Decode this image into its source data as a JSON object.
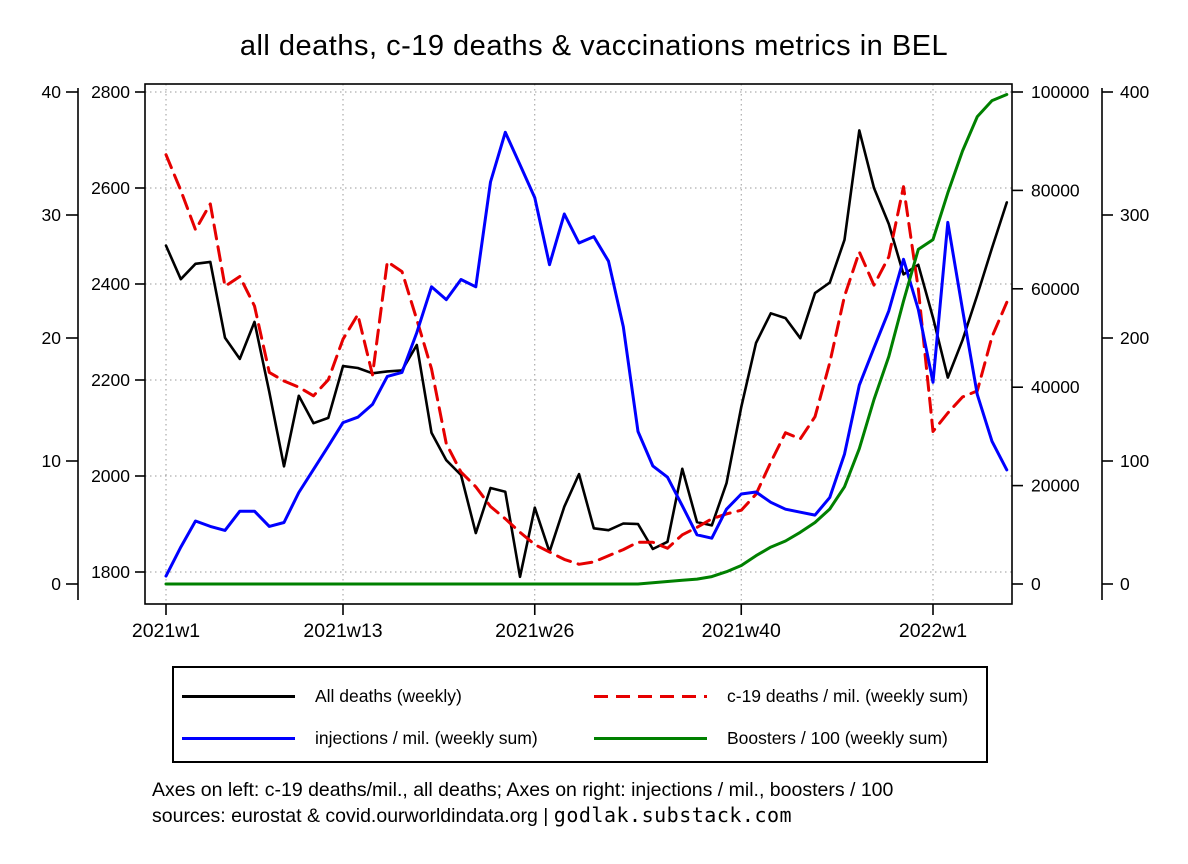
{
  "title": "all deaths, c-19 deaths & vaccinations metrics in BEL",
  "legend": {
    "items": [
      {
        "label": "All deaths (weekly)",
        "color": "#000000",
        "style": "solid",
        "row": 0,
        "col": 0
      },
      {
        "label": "c-19 deaths / mil. (weekly sum)",
        "color": "#e60000",
        "style": "dashed",
        "row": 0,
        "col": 1
      },
      {
        "label": "injections / mil. (weekly sum)",
        "color": "#0000ff",
        "style": "solid",
        "row": 1,
        "col": 0
      },
      {
        "label": "Boosters / 100 (weekly sum)",
        "color": "#008000",
        "style": "solid",
        "row": 1,
        "col": 1
      }
    ]
  },
  "footer": {
    "line1": "Axes on left: c-19 deaths/mil., all deaths; Axes on right: injections / mil., boosters / 100",
    "line2_prefix": "sources: eurostat & covid.ourworldindata.org |  ",
    "line2_site": "godlak.substack.com"
  },
  "chart_data": {
    "type": "line",
    "title": "all deaths, c-19 deaths & vaccinations metrics in BEL",
    "x_unit": "ISO week (2021w1 – 2022w6)",
    "x_tick_labels": [
      "2021w1",
      "2021w13",
      "2021w26",
      "2021w40",
      "2022w1"
    ],
    "x_tick_week_index": [
      1,
      13,
      26,
      40,
      53
    ],
    "n_points": 58,
    "grid": true,
    "legend_position": "bottom",
    "axes": {
      "left_outer": {
        "label": "c-19 deaths / mil.",
        "ticks": [
          0,
          10,
          20,
          30,
          40
        ],
        "range": [
          0,
          40
        ]
      },
      "left_inner": {
        "label": "all deaths",
        "ticks": [
          1800,
          2000,
          2200,
          2400,
          2600,
          2800
        ],
        "range": [
          1800,
          2800
        ]
      },
      "right_inner": {
        "label": "injections / mil.",
        "ticks": [
          0,
          20000,
          40000,
          60000,
          80000,
          100000
        ],
        "range": [
          0,
          100000
        ]
      },
      "right_outer": {
        "label": "boosters / 100",
        "ticks": [
          0,
          100,
          200,
          300,
          400
        ],
        "range": [
          0,
          400
        ]
      }
    },
    "series": [
      {
        "name": "All deaths (weekly)",
        "axis": "left_inner",
        "color": "#000000",
        "dash": null,
        "width": 2.6,
        "values": [
          2480,
          2410,
          2442,
          2446,
          2288,
          2244,
          2321,
          2175,
          2020,
          2167,
          2110,
          2121,
          2229,
          2225,
          2214,
          2218,
          2220,
          2273,
          2090,
          2033,
          2002,
          1881,
          1975,
          1967,
          1790,
          1934,
          1842,
          1936,
          2004,
          1891,
          1887,
          1901,
          1900,
          1848,
          1863,
          2015,
          1904,
          1897,
          1985,
          2144,
          2277,
          2339,
          2329,
          2287,
          2381,
          2403,
          2492,
          2720,
          2600,
          2525,
          2420,
          2440,
          2330,
          2205,
          2283,
          2377,
          2475,
          2570
        ]
      },
      {
        "name": "c-19 deaths / mil. (weekly sum)",
        "axis": "left_outer",
        "color": "#e60000",
        "dash": "14,8",
        "width": 3,
        "values": [
          34.9,
          32,
          28.8,
          30.9,
          24.2,
          25,
          22.6,
          17.2,
          16.5,
          16,
          15.3,
          16.6,
          19.9,
          21.9,
          17,
          26.2,
          25.4,
          21.5,
          17.5,
          11.4,
          9.1,
          7.9,
          6.3,
          5.3,
          4.2,
          3.2,
          2.6,
          2,
          1.6,
          1.8,
          2.3,
          2.8,
          3.4,
          3.4,
          2.9,
          4,
          4.6,
          5.3,
          5.7,
          6,
          7.3,
          9.9,
          12.3,
          11.8,
          13.6,
          18,
          23.4,
          27,
          24.3,
          26.6,
          32.3,
          24,
          12.4,
          13.9,
          15.2,
          15.7,
          20.1,
          22.9
        ]
      },
      {
        "name": "injections / mil. (weekly sum)",
        "axis": "right_inner",
        "color": "#0000ff",
        "dash": null,
        "width": 3,
        "values": [
          1600,
          7500,
          12800,
          11700,
          10900,
          14800,
          14800,
          11700,
          12500,
          18600,
          23300,
          28000,
          32800,
          33900,
          36500,
          42200,
          43000,
          51100,
          60400,
          57800,
          61900,
          60400,
          81700,
          91800,
          85200,
          78500,
          64900,
          75200,
          69300,
          70600,
          65600,
          52300,
          31000,
          24000,
          21700,
          15900,
          10000,
          9300,
          15200,
          18300,
          18700,
          16600,
          15200,
          14600,
          14000,
          17600,
          26400,
          40400,
          48000,
          55500,
          66000,
          55800,
          41000,
          73500,
          55800,
          38500,
          29000,
          23200
        ]
      },
      {
        "name": "Boosters / 100 (weekly sum)",
        "axis": "right_outer",
        "color": "#008000",
        "dash": null,
        "width": 3,
        "values": [
          0,
          0,
          0,
          0,
          0,
          0,
          0,
          0,
          0,
          0,
          0,
          0,
          0,
          0,
          0,
          0,
          0,
          0,
          0,
          0,
          0,
          0,
          0,
          0,
          0,
          0,
          0,
          0,
          0,
          0,
          0,
          0,
          0,
          1,
          2,
          3,
          4,
          6,
          10,
          15,
          23,
          30,
          35,
          42,
          50,
          61,
          79,
          110,
          150,
          185,
          230,
          272,
          280,
          318,
          352,
          380,
          393,
          398
        ]
      }
    ]
  }
}
